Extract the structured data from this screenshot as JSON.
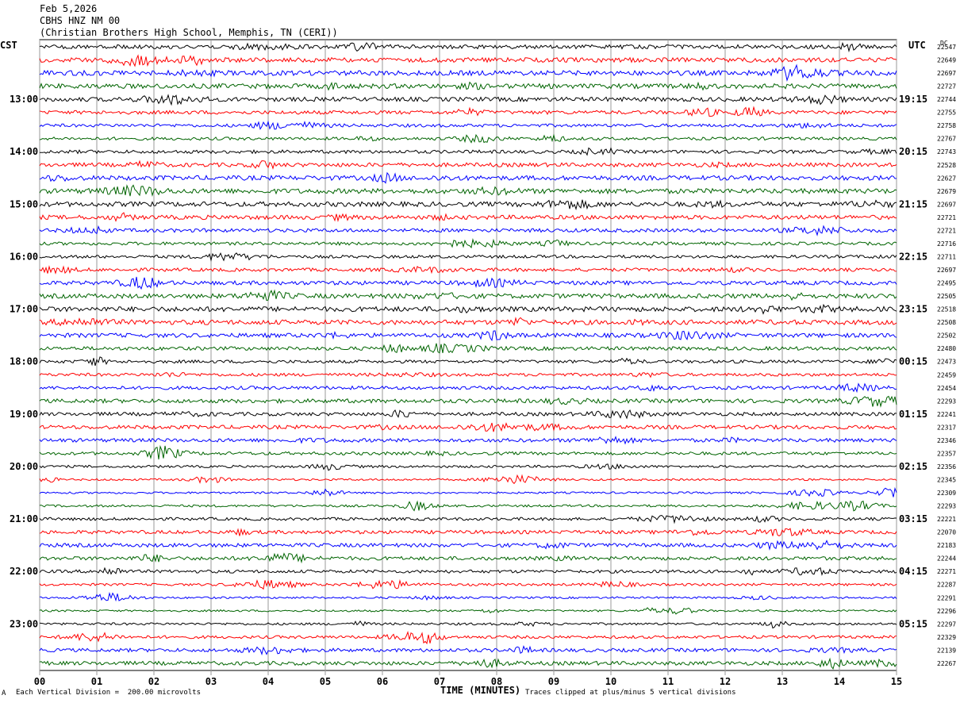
{
  "header": {
    "date": "Feb 5,2026",
    "station": "CBHS HNZ NM 00",
    "location": "(Christian Brothers High School, Memphis, TN (CERI))"
  },
  "left_zone_label": "CST",
  "right_zone_label": "UTC",
  "dc_label": "DC",
  "footer": {
    "scale_note": "Each Vertical Division =  200.00 microvolts",
    "clip_note": "Traces clipped at plus/minus 5 vertical divisions",
    "corner_mark": "A"
  },
  "chart_data": {
    "type": "line",
    "title": "",
    "xlabel": "TIME (MINUTES)",
    "ylabel": "",
    "xlim": [
      0,
      15
    ],
    "x_ticks": [
      "00",
      "01",
      "02",
      "03",
      "04",
      "05",
      "06",
      "07",
      "08",
      "09",
      "10",
      "11",
      "12",
      "13",
      "14",
      "15"
    ],
    "grid": "vertical lines every minute",
    "line_colors": [
      "#000000",
      "#ff0000",
      "#0000ff",
      "#006400"
    ],
    "left_hour_labels": [
      "13:00",
      "14:00",
      "15:00",
      "16:00",
      "17:00",
      "18:00",
      "19:00",
      "20:00",
      "21:00",
      "22:00",
      "23:00"
    ],
    "right_hour_labels": [
      "19:15",
      "20:15",
      "21:15",
      "22:15",
      "23:15",
      "00:15",
      "01:15",
      "02:15",
      "03:15",
      "04:15",
      "05:15"
    ],
    "dc_offsets": [
      22547,
      22649,
      22697,
      22727,
      22744,
      22755,
      22758,
      22767,
      22743,
      22528,
      22627,
      22679,
      22697,
      22721,
      22721,
      22716,
      22711,
      22697,
      22495,
      22505,
      22518,
      22508,
      22502,
      22480,
      22473,
      22459,
      22454,
      22293,
      22241,
      22317,
      22346,
      22357,
      22356,
      22345,
      22309,
      22293,
      22221,
      22070,
      22183,
      22244,
      22271,
      22287,
      22291,
      22296,
      22297,
      22329,
      22139,
      22267
    ]
  }
}
